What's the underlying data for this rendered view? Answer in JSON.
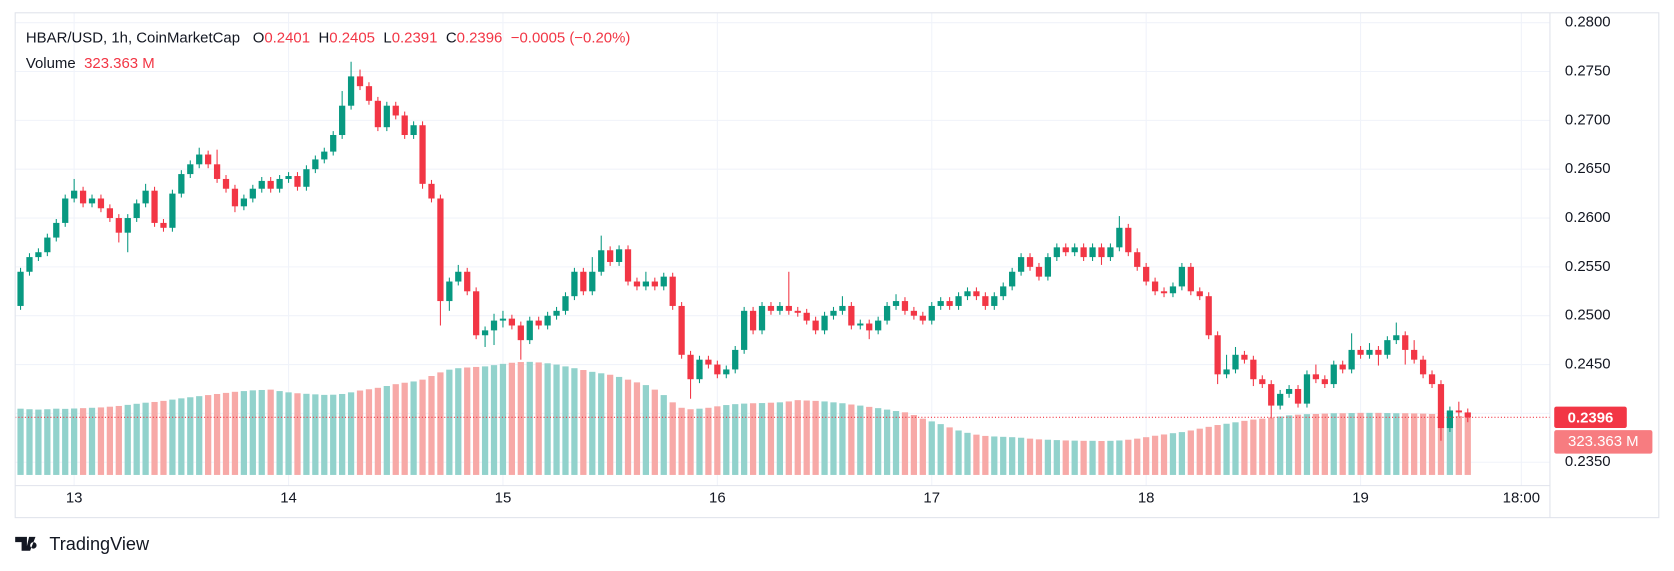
{
  "chart_data": {
    "type": "candlestick",
    "legend": {
      "symbol": "HBAR/USD, 1h, CoinMarketCap",
      "open_key": "O",
      "high_key": "H",
      "low_key": "L",
      "close_key": "C",
      "change": "−0.0005 (−0.20%)",
      "volume_key": "Volume",
      "volume_label": "323.363 M"
    },
    "up_color": "#089981",
    "down_color": "#f23645",
    "volume_up_color": "#92d2cc",
    "volume_down_color": "#f7a9a7",
    "ylim": [
      0.2337,
      0.2809
    ],
    "yticks": [
      {
        "value": 0.28,
        "label": "0.2800"
      },
      {
        "value": 0.275,
        "label": "0.2750"
      },
      {
        "value": 0.27,
        "label": "0.2700"
      },
      {
        "value": 0.265,
        "label": "0.2650"
      },
      {
        "value": 0.26,
        "label": "0.2600"
      },
      {
        "value": 0.255,
        "label": "0.2550"
      },
      {
        "value": 0.25,
        "label": "0.2500"
      },
      {
        "value": 0.245,
        "label": "0.2450"
      },
      {
        "value": 0.24,
        "label": "0.2400"
      },
      {
        "value": 0.235,
        "label": "0.2350"
      }
    ],
    "xlim": [
      -0.6,
      171.2
    ],
    "xticks": [
      {
        "value": 6,
        "label": "13"
      },
      {
        "value": 30,
        "label": "14"
      },
      {
        "value": 54,
        "label": "15"
      },
      {
        "value": 78,
        "label": "16"
      },
      {
        "value": 102,
        "label": "17"
      },
      {
        "value": 126,
        "label": "18"
      },
      {
        "value": 150,
        "label": "19"
      },
      {
        "value": 168,
        "label": "18:00"
      }
    ],
    "vlim": [
      0,
      2540
    ],
    "grid": true,
    "candles": [
      [
        0.251,
        0.2549,
        0.2506,
        0.2545
      ],
      [
        0.2545,
        0.2564,
        0.2541,
        0.256
      ],
      [
        0.256,
        0.2569,
        0.2556,
        0.2565
      ],
      [
        0.2565,
        0.2584,
        0.2561,
        0.258
      ],
      [
        0.258,
        0.2599,
        0.2576,
        0.2595
      ],
      [
        0.2595,
        0.2624,
        0.2591,
        0.262
      ],
      [
        0.262,
        0.264,
        0.2616,
        0.2628
      ],
      [
        0.2628,
        0.2632,
        0.2611,
        0.2615
      ],
      [
        0.2615,
        0.2624,
        0.2611,
        0.262
      ],
      [
        0.262,
        0.2624,
        0.2606,
        0.261
      ],
      [
        0.261,
        0.2614,
        0.2596,
        0.26
      ],
      [
        0.26,
        0.2604,
        0.2575,
        0.2585
      ],
      [
        0.2585,
        0.2604,
        0.2565,
        0.26
      ],
      [
        0.26,
        0.2619,
        0.2596,
        0.2615
      ],
      [
        0.2615,
        0.2635,
        0.2611,
        0.2628
      ],
      [
        0.2628,
        0.2632,
        0.2591,
        0.2595
      ],
      [
        0.2595,
        0.2599,
        0.2586,
        0.259
      ],
      [
        0.259,
        0.2629,
        0.2586,
        0.2625
      ],
      [
        0.2625,
        0.2649,
        0.2621,
        0.2645
      ],
      [
        0.2645,
        0.2659,
        0.2641,
        0.2655
      ],
      [
        0.2655,
        0.2672,
        0.2651,
        0.2665
      ],
      [
        0.2665,
        0.2669,
        0.2651,
        0.2655
      ],
      [
        0.2655,
        0.267,
        0.2636,
        0.264
      ],
      [
        0.264,
        0.2644,
        0.2626,
        0.263
      ],
      [
        0.263,
        0.2634,
        0.2606,
        0.2612
      ],
      [
        0.2612,
        0.2624,
        0.2608,
        0.262
      ],
      [
        0.262,
        0.2634,
        0.2616,
        0.263
      ],
      [
        0.263,
        0.2642,
        0.2626,
        0.2638
      ],
      [
        0.2638,
        0.2642,
        0.2626,
        0.263
      ],
      [
        0.263,
        0.2644,
        0.2626,
        0.264
      ],
      [
        0.264,
        0.2647,
        0.2636,
        0.2643
      ],
      [
        0.2643,
        0.2647,
        0.2628,
        0.2632
      ],
      [
        0.2632,
        0.2654,
        0.2628,
        0.265
      ],
      [
        0.265,
        0.2664,
        0.2646,
        0.266
      ],
      [
        0.266,
        0.2672,
        0.2656,
        0.2668
      ],
      [
        0.2668,
        0.2689,
        0.2664,
        0.2685
      ],
      [
        0.2685,
        0.273,
        0.2681,
        0.2715
      ],
      [
        0.2715,
        0.276,
        0.2711,
        0.2745
      ],
      [
        0.2745,
        0.2752,
        0.2731,
        0.2735
      ],
      [
        0.2735,
        0.2739,
        0.2716,
        0.272
      ],
      [
        0.272,
        0.2724,
        0.2689,
        0.2693
      ],
      [
        0.2693,
        0.2719,
        0.2689,
        0.2715
      ],
      [
        0.2715,
        0.2719,
        0.2701,
        0.2705
      ],
      [
        0.2705,
        0.2709,
        0.2681,
        0.2685
      ],
      [
        0.2685,
        0.2699,
        0.2681,
        0.2695
      ],
      [
        0.2695,
        0.2699,
        0.263,
        0.2635
      ],
      [
        0.2635,
        0.2639,
        0.2616,
        0.262
      ],
      [
        0.262,
        0.2624,
        0.249,
        0.2515
      ],
      [
        0.2515,
        0.2539,
        0.2505,
        0.2535
      ],
      [
        0.2535,
        0.2552,
        0.2531,
        0.2545
      ],
      [
        0.2545,
        0.2549,
        0.2521,
        0.2525
      ],
      [
        0.2525,
        0.2529,
        0.2476,
        0.248
      ],
      [
        0.248,
        0.2489,
        0.2468,
        0.2485
      ],
      [
        0.2485,
        0.2502,
        0.247,
        0.2495
      ],
      [
        0.2495,
        0.2505,
        0.2488,
        0.2497
      ],
      [
        0.2497,
        0.2501,
        0.2486,
        0.249
      ],
      [
        0.249,
        0.2494,
        0.2455,
        0.2475
      ],
      [
        0.2475,
        0.2499,
        0.2471,
        0.2495
      ],
      [
        0.2495,
        0.2499,
        0.2486,
        0.249
      ],
      [
        0.249,
        0.2504,
        0.2486,
        0.25
      ],
      [
        0.25,
        0.2509,
        0.2496,
        0.2505
      ],
      [
        0.2505,
        0.2524,
        0.2501,
        0.252
      ],
      [
        0.252,
        0.2549,
        0.2516,
        0.2545
      ],
      [
        0.2545,
        0.2549,
        0.2521,
        0.2525
      ],
      [
        0.2525,
        0.256,
        0.2521,
        0.2545
      ],
      [
        0.2545,
        0.2582,
        0.2541,
        0.2567
      ],
      [
        0.2567,
        0.2571,
        0.2551,
        0.2555
      ],
      [
        0.2555,
        0.2572,
        0.2551,
        0.2568
      ],
      [
        0.2568,
        0.2572,
        0.2531,
        0.2535
      ],
      [
        0.2535,
        0.2539,
        0.2526,
        0.253
      ],
      [
        0.253,
        0.2545,
        0.2526,
        0.2535
      ],
      [
        0.2535,
        0.2539,
        0.2526,
        0.253
      ],
      [
        0.253,
        0.2544,
        0.2526,
        0.254
      ],
      [
        0.254,
        0.2544,
        0.2506,
        0.251
      ],
      [
        0.251,
        0.2514,
        0.2456,
        0.246
      ],
      [
        0.246,
        0.2464,
        0.2415,
        0.2435
      ],
      [
        0.2435,
        0.2459,
        0.2431,
        0.2455
      ],
      [
        0.2455,
        0.2459,
        0.2446,
        0.245
      ],
      [
        0.245,
        0.2454,
        0.2436,
        0.244
      ],
      [
        0.244,
        0.2449,
        0.2436,
        0.2445
      ],
      [
        0.2445,
        0.2469,
        0.2441,
        0.2465
      ],
      [
        0.2465,
        0.2509,
        0.2461,
        0.2505
      ],
      [
        0.2505,
        0.2509,
        0.2481,
        0.2485
      ],
      [
        0.2485,
        0.2514,
        0.2481,
        0.251
      ],
      [
        0.251,
        0.2514,
        0.2501,
        0.2505
      ],
      [
        0.2505,
        0.2514,
        0.2501,
        0.251
      ],
      [
        0.251,
        0.2545,
        0.2501,
        0.2505
      ],
      [
        0.2505,
        0.2509,
        0.2499,
        0.2503
      ],
      [
        0.2503,
        0.2507,
        0.2491,
        0.2495
      ],
      [
        0.2495,
        0.2499,
        0.2481,
        0.2485
      ],
      [
        0.2485,
        0.2504,
        0.2481,
        0.25
      ],
      [
        0.25,
        0.2509,
        0.2496,
        0.2505
      ],
      [
        0.2505,
        0.252,
        0.2501,
        0.251
      ],
      [
        0.251,
        0.2514,
        0.2486,
        0.249
      ],
      [
        0.249,
        0.2496,
        0.2486,
        0.2492
      ],
      [
        0.2492,
        0.2496,
        0.2476,
        0.2485
      ],
      [
        0.2485,
        0.2499,
        0.2481,
        0.2495
      ],
      [
        0.2495,
        0.2514,
        0.2491,
        0.251
      ],
      [
        0.251,
        0.2522,
        0.2506,
        0.2515
      ],
      [
        0.2515,
        0.2519,
        0.2501,
        0.2505
      ],
      [
        0.2505,
        0.2509,
        0.2496,
        0.25
      ],
      [
        0.25,
        0.2504,
        0.2491,
        0.2495
      ],
      [
        0.2495,
        0.2514,
        0.2491,
        0.251
      ],
      [
        0.251,
        0.2519,
        0.2506,
        0.2515
      ],
      [
        0.2515,
        0.2519,
        0.2506,
        0.251
      ],
      [
        0.251,
        0.2524,
        0.2506,
        0.252
      ],
      [
        0.252,
        0.2529,
        0.2516,
        0.2525
      ],
      [
        0.2525,
        0.2529,
        0.2516,
        0.252
      ],
      [
        0.252,
        0.2524,
        0.2506,
        0.251
      ],
      [
        0.251,
        0.2524,
        0.2506,
        0.252
      ],
      [
        0.252,
        0.2534,
        0.2516,
        0.253
      ],
      [
        0.253,
        0.2549,
        0.2526,
        0.2545
      ],
      [
        0.2545,
        0.2564,
        0.2541,
        0.256
      ],
      [
        0.256,
        0.2564,
        0.2546,
        0.255
      ],
      [
        0.255,
        0.2554,
        0.2536,
        0.254
      ],
      [
        0.254,
        0.2564,
        0.2536,
        0.256
      ],
      [
        0.256,
        0.2574,
        0.2556,
        0.257
      ],
      [
        0.257,
        0.2574,
        0.2561,
        0.2565
      ],
      [
        0.2565,
        0.2574,
        0.2561,
        0.257
      ],
      [
        0.257,
        0.2574,
        0.2556,
        0.256
      ],
      [
        0.256,
        0.2574,
        0.2556,
        0.257
      ],
      [
        0.257,
        0.2574,
        0.2552,
        0.256
      ],
      [
        0.256,
        0.2574,
        0.2556,
        0.257
      ],
      [
        0.257,
        0.2602,
        0.2566,
        0.259
      ],
      [
        0.259,
        0.2594,
        0.2561,
        0.2565
      ],
      [
        0.2565,
        0.2569,
        0.2546,
        0.255
      ],
      [
        0.255,
        0.2554,
        0.2531,
        0.2535
      ],
      [
        0.2535,
        0.2539,
        0.2521,
        0.2525
      ],
      [
        0.2525,
        0.2529,
        0.2519,
        0.2523
      ],
      [
        0.2523,
        0.2534,
        0.2519,
        0.253
      ],
      [
        0.253,
        0.2554,
        0.2526,
        0.255
      ],
      [
        0.255,
        0.2554,
        0.2521,
        0.2525
      ],
      [
        0.2525,
        0.2529,
        0.2516,
        0.252
      ],
      [
        0.252,
        0.2524,
        0.2476,
        0.248
      ],
      [
        0.248,
        0.2484,
        0.243,
        0.244
      ],
      [
        0.244,
        0.246,
        0.2436,
        0.2445
      ],
      [
        0.2445,
        0.2468,
        0.2441,
        0.246
      ],
      [
        0.246,
        0.2464,
        0.2451,
        0.2455
      ],
      [
        0.2455,
        0.2459,
        0.2428,
        0.2435
      ],
      [
        0.2435,
        0.2439,
        0.2426,
        0.243
      ],
      [
        0.243,
        0.2434,
        0.2395,
        0.2408
      ],
      [
        0.2408,
        0.2424,
        0.2404,
        0.242
      ],
      [
        0.242,
        0.2429,
        0.2416,
        0.2425
      ],
      [
        0.2425,
        0.2429,
        0.2406,
        0.241
      ],
      [
        0.241,
        0.2444,
        0.2406,
        0.244
      ],
      [
        0.244,
        0.245,
        0.2431,
        0.2435
      ],
      [
        0.2435,
        0.2439,
        0.2426,
        0.243
      ],
      [
        0.243,
        0.2454,
        0.2426,
        0.245
      ],
      [
        0.245,
        0.2454,
        0.2441,
        0.2445
      ],
      [
        0.2445,
        0.2482,
        0.2441,
        0.2465
      ],
      [
        0.2465,
        0.2469,
        0.2456,
        0.246
      ],
      [
        0.246,
        0.2472,
        0.2456,
        0.2465
      ],
      [
        0.2465,
        0.2469,
        0.2449,
        0.246
      ],
      [
        0.246,
        0.2479,
        0.2456,
        0.2475
      ],
      [
        0.2475,
        0.2493,
        0.2471,
        0.248
      ],
      [
        0.248,
        0.2484,
        0.245,
        0.2465
      ],
      [
        0.2465,
        0.2475,
        0.2451,
        0.2455
      ],
      [
        0.2455,
        0.2459,
        0.2436,
        0.244
      ],
      [
        0.244,
        0.2444,
        0.2426,
        0.243
      ],
      [
        0.243,
        0.2434,
        0.2372,
        0.2385
      ],
      [
        0.2385,
        0.2407,
        0.2381,
        0.2403
      ],
      [
        0.2403,
        0.2412,
        0.2397,
        0.2401
      ],
      [
        0.2401,
        0.2405,
        0.2391,
        0.2396
      ]
    ],
    "volume": [
      365,
      362,
      360,
      362,
      365,
      364,
      366,
      368,
      370,
      372,
      376,
      380,
      386,
      392,
      398,
      402,
      408,
      415,
      422,
      428,
      434,
      440,
      446,
      452,
      458,
      462,
      466,
      468,
      470,
      462,
      455,
      450,
      447,
      444,
      441,
      442,
      446,
      455,
      465,
      472,
      480,
      490,
      500,
      508,
      515,
      525,
      545,
      565,
      580,
      588,
      592,
      595,
      598,
      605,
      612,
      618,
      622,
      623,
      620,
      615,
      608,
      598,
      588,
      578,
      568,
      560,
      552,
      540,
      525,
      510,
      495,
      470,
      440,
      400,
      370,
      362,
      365,
      370,
      378,
      385,
      390,
      393,
      395,
      396,
      398,
      400,
      405,
      412,
      410,
      408,
      405,
      400,
      395,
      388,
      382,
      375,
      368,
      360,
      352,
      345,
      330,
      310,
      295,
      280,
      262,
      245,
      232,
      222,
      215,
      212,
      210,
      208,
      205,
      200,
      196,
      194,
      192,
      190,
      189,
      188,
      188,
      187,
      188,
      190,
      194,
      200,
      208,
      216,
      223,
      230,
      236,
      245,
      255,
      265,
      275,
      282,
      290,
      298,
      305,
      310,
      316,
      322,
      328,
      332,
      335,
      336,
      338,
      340,
      340,
      341,
      342,
      342,
      342,
      341,
      340,
      340,
      339,
      338,
      336,
      332,
      328,
      325,
      323.363
    ]
  },
  "footer": {
    "brand": "TradingView"
  }
}
